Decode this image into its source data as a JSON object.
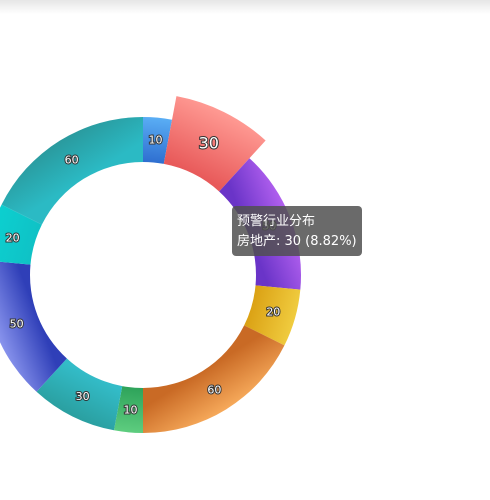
{
  "chart_data": {
    "type": "pie",
    "series_name": "预警行业分布",
    "slices": [
      {
        "name": "",
        "value": 10,
        "color_start": "#5aaef5",
        "color_end": "#2f6fd0"
      },
      {
        "name": "房地产",
        "value": 30,
        "color_start": "#ff9a93",
        "color_end": "#e85a5a",
        "highlighted": true
      },
      {
        "name": "",
        "value": 50,
        "color_start": "#b361f0",
        "color_end": "#6a34c8"
      },
      {
        "name": "",
        "value": 20,
        "color_start": "#f0cc3f",
        "color_end": "#dba215"
      },
      {
        "name": "",
        "value": 60,
        "color_start": "#f6a95a",
        "color_end": "#c96a25"
      },
      {
        "name": "",
        "value": 10,
        "color_start": "#5ecd7f",
        "color_end": "#2ea35a"
      },
      {
        "name": "",
        "value": 30,
        "color_start": "#2a9fa0",
        "color_end": "#33bcc8"
      },
      {
        "name": "",
        "value": 50,
        "color_start": "#8a95ee",
        "color_end": "#2f3fb8"
      },
      {
        "name": "",
        "value": 20,
        "color_start": "#0cd0d0",
        "color_end": "#0fc2c6"
      },
      {
        "name": "",
        "value": 60,
        "color_start": "#2a9a9e",
        "color_end": "#2bbac4"
      }
    ]
  },
  "tooltip": {
    "title": "预警行业分布",
    "line": "房地产: 30 (8.82%)"
  }
}
